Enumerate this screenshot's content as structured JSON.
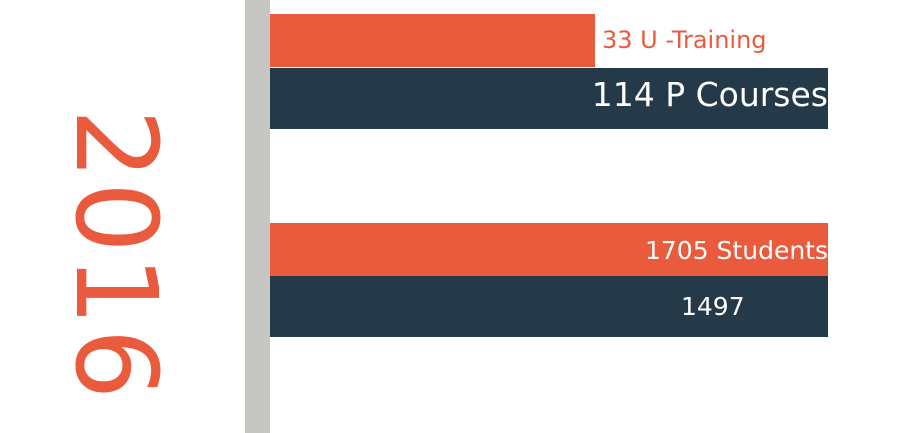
{
  "year_label": "2016",
  "colors": {
    "orange": "#ea5a3d",
    "navy": "#243a48",
    "axis": "#c6c6c2",
    "white": "#ffffff"
  },
  "chart_data": {
    "type": "bar",
    "orientation": "horizontal",
    "axis_range": [
      0,
      1705
    ],
    "grid": false,
    "series": [
      {
        "label": "33 U -Training",
        "value": 33,
        "color": "#ea5a3d"
      },
      {
        "label": "114 P Courses",
        "value": 114,
        "color": "#243a48"
      },
      {
        "label": "1705 Students",
        "value": 1705,
        "color": "#ea5a3d"
      },
      {
        "label": "1497",
        "value": 1497,
        "color": "#243a48"
      }
    ]
  }
}
